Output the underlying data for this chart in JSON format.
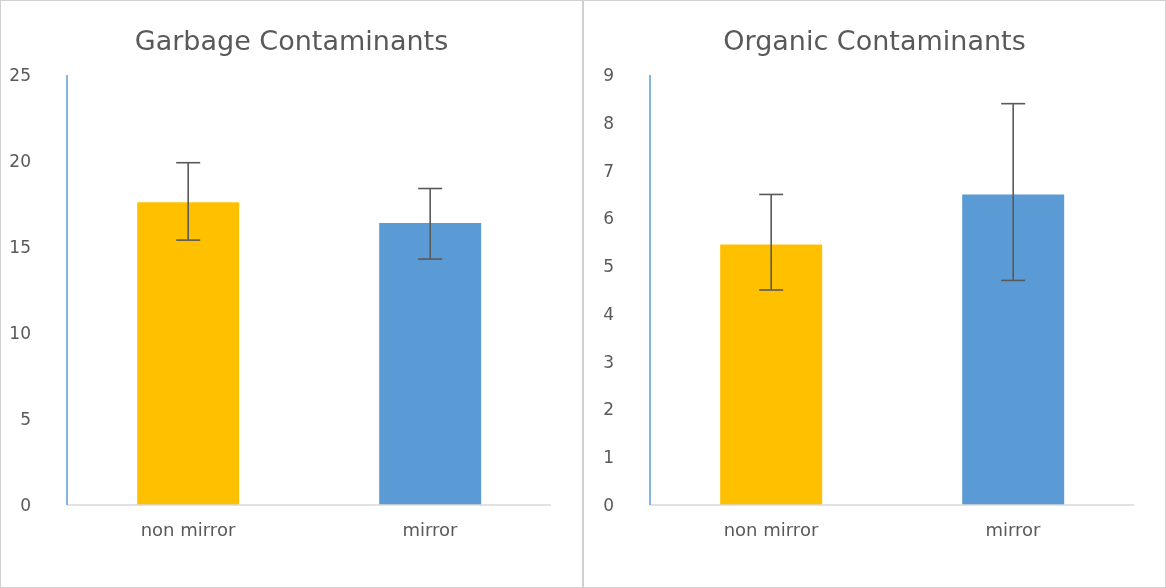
{
  "chart_data": [
    {
      "type": "bar",
      "title": "Garbage Contaminants",
      "categories": [
        "non mirror",
        "mirror"
      ],
      "values": [
        17.6,
        16.4
      ],
      "colors": [
        "#ffc000",
        "#5b9bd5"
      ],
      "errors": [
        [
          15.4,
          19.9
        ],
        [
          14.3,
          18.4
        ]
      ],
      "ylim": [
        0,
        25
      ],
      "yticks": [
        0,
        5,
        10,
        15,
        20,
        25
      ]
    },
    {
      "type": "bar",
      "title": "Organic Contaminants",
      "categories": [
        "non mirror",
        "mirror"
      ],
      "values": [
        5.45,
        6.5
      ],
      "colors": [
        "#ffc000",
        "#5b9bd5"
      ],
      "errors": [
        [
          4.5,
          6.5
        ],
        [
          4.7,
          8.4
        ]
      ],
      "ylim": [
        0,
        9
      ],
      "yticks": [
        0,
        1,
        2,
        3,
        4,
        5,
        6,
        7,
        8,
        9
      ]
    }
  ]
}
